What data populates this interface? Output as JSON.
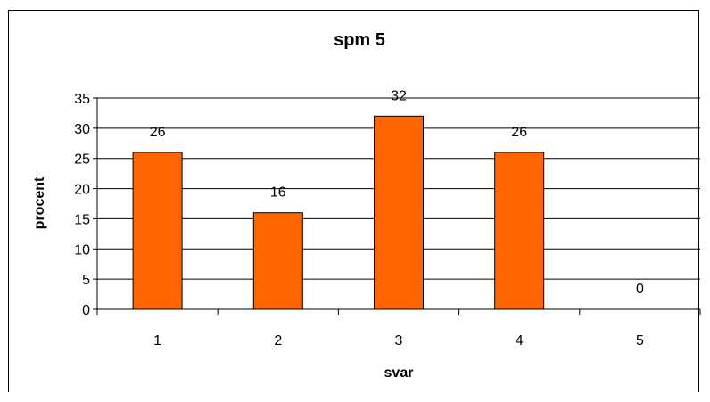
{
  "chart_data": {
    "type": "bar",
    "title": "spm 5",
    "xlabel": "svar",
    "ylabel": "procent",
    "categories": [
      "1",
      "2",
      "3",
      "4",
      "5"
    ],
    "values": [
      26,
      16,
      32,
      26,
      0
    ],
    "ylim": [
      0,
      35
    ],
    "yticks": [
      0,
      5,
      10,
      15,
      20,
      25,
      30,
      35
    ],
    "grid": true,
    "bar_color": "#ff6600",
    "bar_stroke": "#000000"
  }
}
